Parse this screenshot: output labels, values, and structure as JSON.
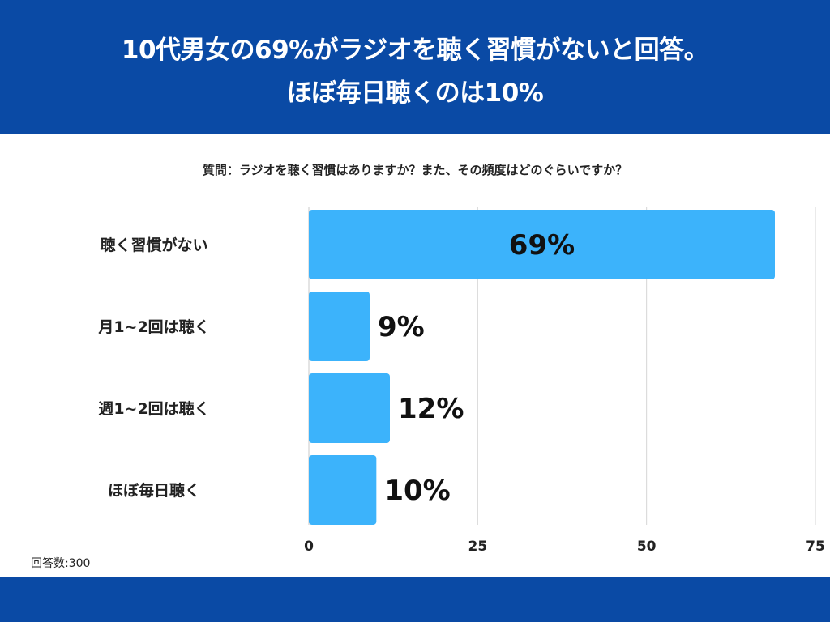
{
  "header": {
    "title_line1": "10代男女の69%がラジオを聴く習慣がないと回答。",
    "title_line2": "ほぼ毎日聴くのは10%",
    "band_color": "#0a4aa5"
  },
  "question": "質問：ラジオを聴く習慣はありますか？また、その頻度はどのぐらいですか？",
  "footnote": "回答数:300",
  "chart_data": {
    "type": "bar",
    "orientation": "horizontal",
    "categories": [
      "聴く習慣がない",
      "月1~2回は聴く",
      "週1~2回は聴く",
      "ほぼ毎日聴く"
    ],
    "values": [
      69,
      9,
      12,
      10
    ],
    "value_labels": [
      "69%",
      "9%",
      "12%",
      "10%"
    ],
    "xlim": [
      0,
      75
    ],
    "xticks": [
      0,
      25,
      50,
      75
    ],
    "grid": true,
    "bar_color": "#3cb3fb"
  }
}
